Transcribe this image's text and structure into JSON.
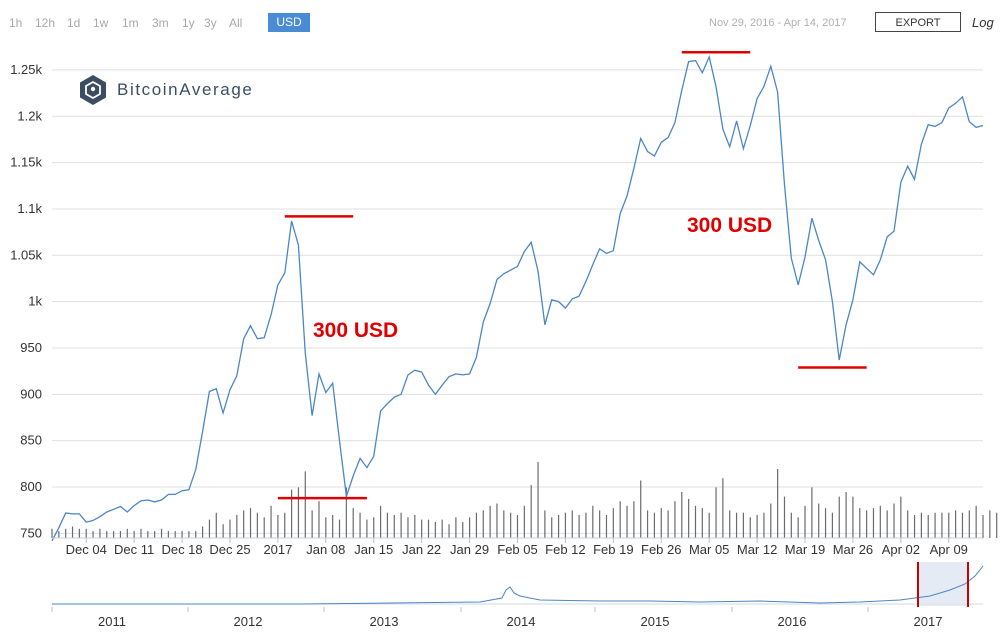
{
  "toolbar": {
    "ranges": [
      "1h",
      "12h",
      "1d",
      "1w",
      "1m",
      "3m",
      "1y",
      "3y",
      "All"
    ],
    "currency": "USD",
    "date_range": "Nov 29, 2016 - Apr 14, 2017",
    "export_label": "EXPORT",
    "log_label": "Log"
  },
  "logo": {
    "text": "BitcoinAverage"
  },
  "annotations": [
    {
      "text": "300 USD",
      "color": "#e00000"
    },
    {
      "text": "300 USD",
      "color": "#e00000"
    }
  ],
  "colors": {
    "line": "#4a86c8",
    "grid": "#e0e0e0",
    "accent": "#4a8bd6",
    "annotation": "#e00000"
  },
  "chart_data": [
    {
      "type": "line",
      "x_ticks": [
        "Dec 04",
        "Dec 11",
        "Dec 18",
        "Dec 25",
        "2017",
        "Jan 08",
        "Jan 15",
        "Jan 22",
        "Jan 29",
        "Feb 05",
        "Feb 12",
        "Feb 19",
        "Feb 26",
        "Mar 05",
        "Mar 12",
        "Mar 19",
        "Mar 26",
        "Apr 02",
        "Apr 09"
      ],
      "y_ticks": [
        "750",
        "800",
        "850",
        "900",
        "950",
        "1k",
        "1.05k",
        "1.1k",
        "1.15k",
        "1.2k",
        "1.25k"
      ],
      "ylim": [
        745,
        1265
      ],
      "xlim": [
        "2016-11-29",
        "2017-04-14"
      ],
      "grid": true,
      "series": [
        {
          "x": [
            "2016-11-29",
            "2016-11-30",
            "2016-12-01",
            "2016-12-02",
            "2016-12-03",
            "2016-12-04",
            "2016-12-05",
            "2016-12-06",
            "2016-12-07",
            "2016-12-08",
            "2016-12-09",
            "2016-12-10",
            "2016-12-11",
            "2016-12-12",
            "2016-12-13",
            "2016-12-14",
            "2016-12-15",
            "2016-12-16",
            "2016-12-17",
            "2016-12-18",
            "2016-12-19",
            "2016-12-20",
            "2016-12-21",
            "2016-12-22",
            "2016-12-23",
            "2016-12-24",
            "2016-12-25",
            "2016-12-26",
            "2016-12-27",
            "2016-12-28",
            "2016-12-29",
            "2016-12-30",
            "2016-12-31",
            "2017-01-01",
            "2017-01-02",
            "2017-01-03",
            "2017-01-04",
            "2017-01-05",
            "2017-01-06",
            "2017-01-07",
            "2017-01-08",
            "2017-01-09",
            "2017-01-10",
            "2017-01-11",
            "2017-01-12",
            "2017-01-13",
            "2017-01-14",
            "2017-01-15",
            "2017-01-16",
            "2017-01-17",
            "2017-01-18",
            "2017-01-19",
            "2017-01-20",
            "2017-01-21",
            "2017-01-22",
            "2017-01-23",
            "2017-01-24",
            "2017-01-25",
            "2017-01-26",
            "2017-01-27",
            "2017-01-28",
            "2017-01-29",
            "2017-01-30",
            "2017-01-31",
            "2017-02-01",
            "2017-02-02",
            "2017-02-03",
            "2017-02-04",
            "2017-02-05",
            "2017-02-06",
            "2017-02-07",
            "2017-02-08",
            "2017-02-09",
            "2017-02-10",
            "2017-02-11",
            "2017-02-12",
            "2017-02-13",
            "2017-02-14",
            "2017-02-15",
            "2017-02-16",
            "2017-02-17",
            "2017-02-18",
            "2017-02-19",
            "2017-02-20",
            "2017-02-21",
            "2017-02-22",
            "2017-02-23",
            "2017-02-24",
            "2017-02-25",
            "2017-02-26",
            "2017-02-27",
            "2017-02-28",
            "2017-03-01",
            "2017-03-02",
            "2017-03-03",
            "2017-03-04",
            "2017-03-05",
            "2017-03-06",
            "2017-03-07",
            "2017-03-08",
            "2017-03-09",
            "2017-03-10",
            "2017-03-11",
            "2017-03-12",
            "2017-03-13",
            "2017-03-14",
            "2017-03-15",
            "2017-03-16",
            "2017-03-17",
            "2017-03-18",
            "2017-03-19",
            "2017-03-20",
            "2017-03-21",
            "2017-03-22",
            "2017-03-23",
            "2017-03-24",
            "2017-03-25",
            "2017-03-26",
            "2017-03-27",
            "2017-03-28",
            "2017-03-29",
            "2017-03-30",
            "2017-03-31",
            "2017-04-01",
            "2017-04-02",
            "2017-04-03",
            "2017-04-04",
            "2017-04-05",
            "2017-04-06",
            "2017-04-07",
            "2017-04-08",
            "2017-04-09",
            "2017-04-10",
            "2017-04-11",
            "2017-04-12",
            "2017-04-13",
            "2017-04-14"
          ],
          "values": [
            742,
            756,
            772,
            771,
            771,
            762,
            764,
            768,
            773,
            776,
            779,
            773,
            780,
            785,
            786,
            784,
            786,
            792,
            792,
            796,
            797,
            819,
            860,
            903,
            906,
            880,
            905,
            920,
            960,
            974,
            960,
            961,
            986,
            1018,
            1031,
            1087,
            1061,
            944,
            877,
            922,
            902,
            912,
            850,
            790,
            812,
            831,
            821,
            833,
            882,
            890,
            897,
            900,
            921,
            926,
            924,
            910,
            900,
            910,
            919,
            922,
            921,
            922,
            940,
            978,
            998,
            1024,
            1030,
            1034,
            1038,
            1054,
            1064,
            1033,
            975,
            1002,
            1000,
            993,
            1003,
            1006,
            1022,
            1040,
            1057,
            1052,
            1055,
            1095,
            1114,
            1144,
            1176,
            1162,
            1157,
            1172,
            1177,
            1193,
            1228,
            1259,
            1260,
            1247,
            1264,
            1232,
            1186,
            1167,
            1195,
            1165,
            1190,
            1219,
            1232,
            1254,
            1226,
            1126,
            1047,
            1018,
            1048,
            1090,
            1066,
            1045,
            1000,
            937,
            975,
            1002,
            1043,
            1036,
            1029,
            1045,
            1070,
            1076,
            1129,
            1146,
            1132,
            1170,
            1191,
            1189,
            1193,
            1209,
            1214,
            1221,
            1194,
            1188,
            1190
          ]
        }
      ]
    },
    {
      "type": "bar",
      "values": [
        4,
        3,
        4,
        5,
        4,
        4,
        3,
        4,
        3,
        3,
        3,
        4,
        3,
        4,
        3,
        3,
        4,
        3,
        3,
        3,
        3,
        3,
        5,
        8,
        11,
        6,
        8,
        10,
        12,
        13,
        11,
        9,
        14,
        10,
        11,
        21,
        22,
        29,
        12,
        16,
        9,
        10,
        8,
        22,
        13,
        11,
        8,
        9,
        14,
        11,
        10,
        11,
        9,
        10,
        8,
        8,
        7,
        8,
        6,
        9,
        7,
        9,
        11,
        12,
        14,
        15,
        12,
        11,
        10,
        14,
        23,
        33,
        12,
        9,
        10,
        11,
        12,
        10,
        11,
        14,
        12,
        10,
        13,
        16,
        14,
        16,
        25,
        12,
        11,
        13,
        12,
        16,
        20,
        17,
        14,
        13,
        11,
        22,
        26,
        12,
        11,
        11,
        9,
        10,
        11,
        15,
        30,
        18,
        11,
        9,
        14,
        22,
        15,
        13,
        11,
        18,
        20,
        18,
        13,
        12,
        13,
        14,
        12,
        15,
        18,
        12,
        10,
        11,
        10,
        11,
        11,
        11,
        12,
        11,
        12,
        14,
        10,
        12,
        11
      ]
    },
    {
      "type": "area",
      "x_ticks": [
        "2011",
        "2012",
        "2013",
        "2014",
        "2015",
        "2016",
        "2017"
      ]
    }
  ]
}
